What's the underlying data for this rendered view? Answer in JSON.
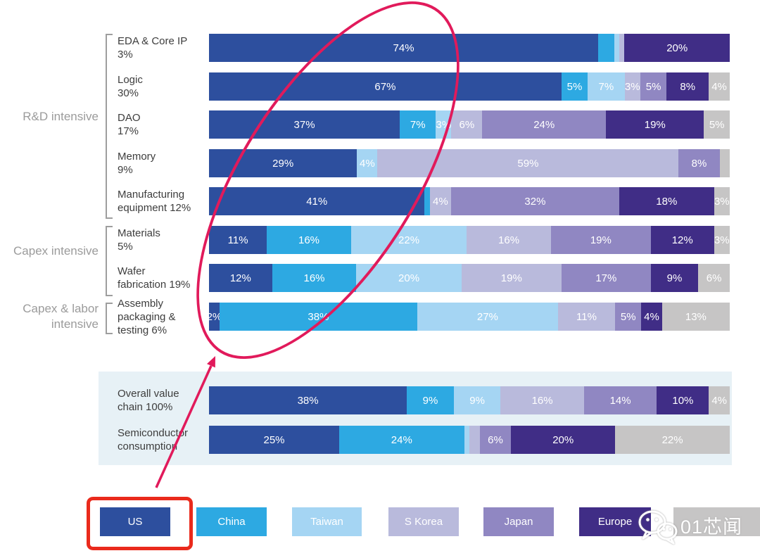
{
  "colors": {
    "regions": {
      "US": "#2d4f9e",
      "China": "#2da9e2",
      "Taiwan": "#a5d5f3",
      "S Korea": "#b9badc",
      "Japan": "#9087c2",
      "Europe": "#402d86",
      "Other": "#c6c5c5"
    },
    "panel_bg": "#e7f1f6",
    "annotation_ellipse": "#e11a5b",
    "annotation_rect": "#ea2a1c",
    "group_label_text": "#9b9b9b",
    "row_label_text": "#3d3d3d",
    "segment_label_text": "#ffffff"
  },
  "groups": [
    {
      "label": "R&D intensive",
      "rows": [
        "eda-core-ip",
        "logic",
        "dao",
        "memory",
        "manufacturing-equipment"
      ]
    },
    {
      "label": "Capex intensive",
      "rows": [
        "materials",
        "wafer-fabrication"
      ]
    },
    {
      "label": "Capex & labor intensive",
      "rows": [
        "assembly-packaging-testing"
      ]
    }
  ],
  "chart_data": {
    "type": "bar",
    "variant": "horizontal-stacked-100",
    "unit": "%",
    "legend_position": "bottom",
    "regions": [
      "US",
      "China",
      "Taiwan",
      "S Korea",
      "Japan",
      "Europe",
      "Other"
    ],
    "rows": [
      {
        "id": "eda-core-ip",
        "label": "EDA & Core IP 3%",
        "label_lines": [
          "EDA & Core IP",
          "3%"
        ],
        "group": "R&D intensive",
        "segments": [
          {
            "region": "US",
            "value": 74,
            "label": "74%"
          },
          {
            "region": "China",
            "value": 3,
            "label": ""
          },
          {
            "region": "Taiwan",
            "value": 1,
            "label": ""
          },
          {
            "region": "S Korea",
            "value": 1,
            "label": ""
          },
          {
            "region": "Europe",
            "value": 20,
            "label": "20%"
          }
        ]
      },
      {
        "id": "logic",
        "label": "Logic 30%",
        "label_lines": [
          "Logic",
          "30%"
        ],
        "group": "R&D intensive",
        "segments": [
          {
            "region": "US",
            "value": 67,
            "label": "67%"
          },
          {
            "region": "China",
            "value": 5,
            "label": "5%"
          },
          {
            "region": "Taiwan",
            "value": 7,
            "label": "7%"
          },
          {
            "region": "S Korea",
            "value": 3,
            "label": "3%"
          },
          {
            "region": "Japan",
            "value": 5,
            "label": "5%"
          },
          {
            "region": "Europe",
            "value": 8,
            "label": "8%"
          },
          {
            "region": "Other",
            "value": 4,
            "label": "4%"
          }
        ]
      },
      {
        "id": "dao",
        "label": "DAO 17%",
        "label_lines": [
          "DAO",
          "17%"
        ],
        "group": "R&D intensive",
        "segments": [
          {
            "region": "US",
            "value": 37,
            "label": "37%"
          },
          {
            "region": "China",
            "value": 7,
            "label": "7%"
          },
          {
            "region": "Taiwan",
            "value": 3,
            "label": "3%"
          },
          {
            "region": "S Korea",
            "value": 6,
            "label": "6%"
          },
          {
            "region": "Japan",
            "value": 24,
            "label": "24%"
          },
          {
            "region": "Europe",
            "value": 19,
            "label": "19%"
          },
          {
            "region": "Other",
            "value": 5,
            "label": "5%"
          }
        ]
      },
      {
        "id": "memory",
        "label": "Memory 9%",
        "label_lines": [
          "Memory",
          "9%"
        ],
        "group": "R&D intensive",
        "segments": [
          {
            "region": "US",
            "value": 29,
            "label": "29%"
          },
          {
            "region": "Taiwan",
            "value": 4,
            "label": "4%"
          },
          {
            "region": "S Korea",
            "value": 59,
            "label": "59%"
          },
          {
            "region": "Japan",
            "value": 8,
            "label": "8%"
          },
          {
            "region": "Other",
            "value": 2,
            "label": ""
          }
        ]
      },
      {
        "id": "manufacturing-equipment",
        "label": "Manufacturing equipment 12%",
        "label_lines": [
          "Manufacturing",
          "equipment 12%"
        ],
        "group": "R&D intensive",
        "segments": [
          {
            "region": "US",
            "value": 41,
            "label": "41%"
          },
          {
            "region": "China",
            "value": 1,
            "label": ""
          },
          {
            "region": "S Korea",
            "value": 4,
            "label": "4%"
          },
          {
            "region": "Japan",
            "value": 32,
            "label": "32%"
          },
          {
            "region": "Europe",
            "value": 18,
            "label": "18%"
          },
          {
            "region": "Other",
            "value": 3,
            "label": "3%"
          }
        ]
      },
      {
        "id": "materials",
        "label": "Materials 5%",
        "label_lines": [
          "Materials",
          "5%"
        ],
        "group": "Capex intensive",
        "segments": [
          {
            "region": "US",
            "value": 11,
            "label": "11%"
          },
          {
            "region": "China",
            "value": 16,
            "label": "16%"
          },
          {
            "region": "Taiwan",
            "value": 22,
            "label": "22%"
          },
          {
            "region": "S Korea",
            "value": 16,
            "label": "16%"
          },
          {
            "region": "Japan",
            "value": 19,
            "label": "19%"
          },
          {
            "region": "Europe",
            "value": 12,
            "label": "12%"
          },
          {
            "region": "Other",
            "value": 3,
            "label": "3%"
          }
        ]
      },
      {
        "id": "wafer-fabrication",
        "label": "Wafer fabrication 19%",
        "label_lines": [
          "Wafer",
          "fabrication 19%"
        ],
        "group": "Capex intensive",
        "segments": [
          {
            "region": "US",
            "value": 12,
            "label": "12%"
          },
          {
            "region": "China",
            "value": 16,
            "label": "16%"
          },
          {
            "region": "Taiwan",
            "value": 20,
            "label": "20%"
          },
          {
            "region": "S Korea",
            "value": 19,
            "label": "19%"
          },
          {
            "region": "Japan",
            "value": 17,
            "label": "17%"
          },
          {
            "region": "Europe",
            "value": 9,
            "label": "9%"
          },
          {
            "region": "Other",
            "value": 6,
            "label": "6%"
          }
        ]
      },
      {
        "id": "assembly-packaging-testing",
        "label": "Assembly packaging & testing 6%",
        "label_lines": [
          "Assembly",
          "packaging &",
          "testing 6%"
        ],
        "group": "Capex & labor intensive",
        "segments": [
          {
            "region": "US",
            "value": 2,
            "label": "2%"
          },
          {
            "region": "China",
            "value": 38,
            "label": "38%"
          },
          {
            "region": "Taiwan",
            "value": 27,
            "label": "27%"
          },
          {
            "region": "S Korea",
            "value": 11,
            "label": "11%"
          },
          {
            "region": "Japan",
            "value": 5,
            "label": "5%"
          },
          {
            "region": "Europe",
            "value": 4,
            "label": "4%"
          },
          {
            "region": "Other",
            "value": 13,
            "label": "13%"
          }
        ]
      }
    ],
    "summary_rows": [
      {
        "id": "overall-value-chain",
        "label": "Overall value chain 100%",
        "label_lines": [
          "Overall value",
          "chain 100%"
        ],
        "segments": [
          {
            "region": "US",
            "value": 38,
            "label": "38%"
          },
          {
            "region": "China",
            "value": 9,
            "label": "9%"
          },
          {
            "region": "Taiwan",
            "value": 9,
            "label": "9%"
          },
          {
            "region": "S Korea",
            "value": 16,
            "label": "16%"
          },
          {
            "region": "Japan",
            "value": 14,
            "label": "14%"
          },
          {
            "region": "Europe",
            "value": 10,
            "label": "10%"
          },
          {
            "region": "Other",
            "value": 4,
            "label": "4%"
          }
        ]
      },
      {
        "id": "semiconductor-consumption",
        "label": "Semiconductor consumption",
        "label_lines": [
          "Semiconductor",
          "consumption"
        ],
        "segments": [
          {
            "region": "US",
            "value": 25,
            "label": "25%"
          },
          {
            "region": "China",
            "value": 24,
            "label": "24%"
          },
          {
            "region": "Taiwan",
            "value": 1,
            "label": ""
          },
          {
            "region": "S Korea",
            "value": 2,
            "label": ""
          },
          {
            "region": "Japan",
            "value": 6,
            "label": "6%"
          },
          {
            "region": "Europe",
            "value": 20,
            "label": "20%"
          },
          {
            "region": "Other",
            "value": 22,
            "label": "22%"
          }
        ]
      }
    ]
  },
  "legend": [
    {
      "region": "US",
      "label": "US"
    },
    {
      "region": "China",
      "label": "China"
    },
    {
      "region": "Taiwan",
      "label": "Taiwan"
    },
    {
      "region": "S Korea",
      "label": "S Korea"
    },
    {
      "region": "Japan",
      "label": "Japan"
    },
    {
      "region": "Europe",
      "label": "Europe"
    },
    {
      "region": "Other",
      "label": ""
    }
  ],
  "annotations": {
    "ellipse": {
      "shape": "ellipse",
      "color": "#e11a5b"
    },
    "arrow": {
      "shape": "arrow",
      "color": "#e11a5b"
    },
    "highlight_rect": {
      "shape": "rectangle",
      "color": "#ea2a1c",
      "around_legend": "US"
    }
  },
  "watermark": {
    "text": "01芯闻",
    "icon": "wechat-icon"
  }
}
